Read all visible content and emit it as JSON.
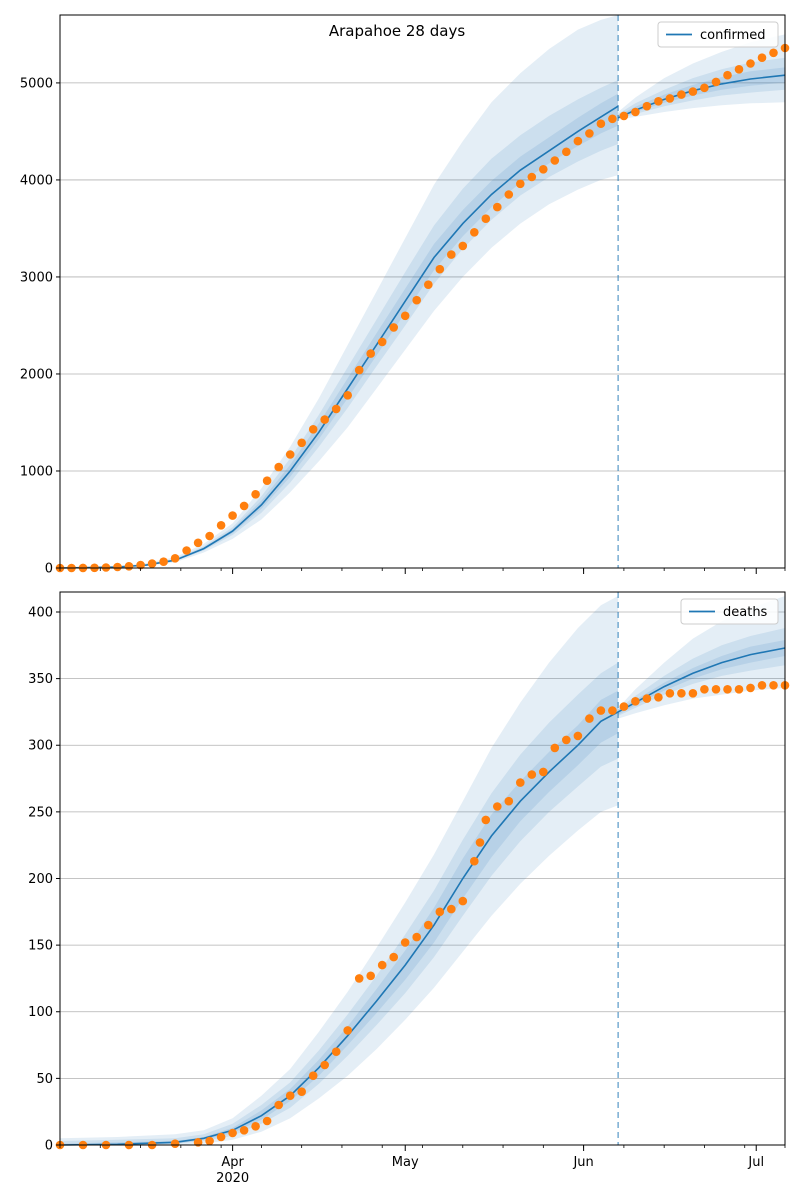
{
  "figure": {
    "title": "Arapahoe 28 days"
  },
  "colors": {
    "model_line": "#1f77b4",
    "observed_points": "#ff7f0e",
    "band": "#1f77b4",
    "grid": "#b0b0b0",
    "cutoff_line": "#1f77b4"
  },
  "chart_data": [
    {
      "type": "line",
      "name": "confirmed-panel",
      "x_start": "2020-03-02",
      "x_end": "2020-07-06",
      "forecast_cutoff": "2020-06-07",
      "ylim": [
        0,
        5700
      ],
      "yticks": [
        0,
        1000,
        2000,
        3000,
        4000,
        5000
      ],
      "xticks_major": [
        {
          "date": "2020-04-01",
          "label": "Apr",
          "sublabel": "2020"
        },
        {
          "date": "2020-05-01",
          "label": "May",
          "sublabel": ""
        },
        {
          "date": "2020-06-01",
          "label": "Jun",
          "sublabel": ""
        },
        {
          "date": "2020-07-01",
          "label": "Jul",
          "sublabel": ""
        }
      ],
      "grid": "horizontal",
      "legend": {
        "position": "top-right",
        "label": "confirmed"
      },
      "model": {
        "x": [
          "2020-03-02",
          "2020-03-12",
          "2020-03-17",
          "2020-03-22",
          "2020-03-27",
          "2020-04-01",
          "2020-04-06",
          "2020-04-11",
          "2020-04-16",
          "2020-04-21",
          "2020-04-26",
          "2020-05-01",
          "2020-05-06",
          "2020-05-11",
          "2020-05-16",
          "2020-05-21",
          "2020-05-26",
          "2020-05-31",
          "2020-06-04",
          "2020-06-07",
          "2020-06-07",
          "2020-06-10",
          "2020-06-15",
          "2020-06-20",
          "2020-06-25",
          "2020-06-30",
          "2020-07-06"
        ],
        "y": [
          0,
          10,
          30,
          80,
          200,
          380,
          650,
          1000,
          1400,
          1850,
          2300,
          2750,
          3200,
          3550,
          3850,
          4100,
          4300,
          4500,
          4650,
          4760,
          4640,
          4720,
          4830,
          4920,
          4990,
          5040,
          5080
        ],
        "bands": [
          {
            "lower": [
              0,
              5,
              20,
              60,
              160,
              300,
              500,
              780,
              1100,
              1450,
              1850,
              2250,
              2650,
              3000,
              3300,
              3550,
              3750,
              3900,
              4000,
              4050,
              4620,
              4650,
              4700,
              4740,
              4770,
              4790,
              4800
            ],
            "upper": [
              5,
              20,
              50,
              110,
              250,
              460,
              820,
              1250,
              1750,
              2300,
              2850,
              3400,
              3950,
              4400,
              4800,
              5100,
              5350,
              5550,
              5650,
              5700,
              4700,
              4850,
              5050,
              5200,
              5320,
              5420,
              5500
            ]
          },
          {
            "lower": [
              0,
              7,
              25,
              70,
              180,
              340,
              570,
              880,
              1250,
              1650,
              2080,
              2500,
              2930,
              3290,
              3590,
              3840,
              4030,
              4190,
              4300,
              4370,
              4630,
              4680,
              4760,
              4820,
              4870,
              4900,
              4930
            ],
            "upper": [
              3,
              15,
              40,
              95,
              225,
              420,
              740,
              1130,
              1580,
              2070,
              2560,
              3050,
              3530,
              3910,
              4220,
              4460,
              4660,
              4830,
              4950,
              5030,
              4680,
              4790,
              4930,
              5050,
              5140,
              5210,
              5260
            ]
          },
          {
            "lower": [
              0,
              8,
              27,
              75,
              190,
              360,
              610,
              940,
              1330,
              1750,
              2190,
              2630,
              3070,
              3420,
              3720,
              3970,
              4170,
              4350,
              4480,
              4560,
              4635,
              4700,
              4795,
              4870,
              4930,
              4970,
              5005
            ],
            "upper": [
              2,
              12,
              35,
              88,
              212,
              400,
              695,
              1065,
              1490,
              1955,
              2420,
              2880,
              3340,
              3690,
              3990,
              4240,
              4440,
              4640,
              4790,
              4890,
              4665,
              4755,
              4880,
              4980,
              5060,
              5120,
              5160
            ]
          }
        ]
      },
      "observed": {
        "x": [
          "2020-03-02",
          "2020-03-04",
          "2020-03-06",
          "2020-03-08",
          "2020-03-10",
          "2020-03-12",
          "2020-03-14",
          "2020-03-16",
          "2020-03-18",
          "2020-03-20",
          "2020-03-22",
          "2020-03-24",
          "2020-03-26",
          "2020-03-28",
          "2020-03-30",
          "2020-04-01",
          "2020-04-03",
          "2020-04-05",
          "2020-04-07",
          "2020-04-09",
          "2020-04-11",
          "2020-04-13",
          "2020-04-15",
          "2020-04-17",
          "2020-04-19",
          "2020-04-21",
          "2020-04-23",
          "2020-04-25",
          "2020-04-27",
          "2020-04-29",
          "2020-05-01",
          "2020-05-03",
          "2020-05-05",
          "2020-05-07",
          "2020-05-09",
          "2020-05-11",
          "2020-05-13",
          "2020-05-15",
          "2020-05-17",
          "2020-05-19",
          "2020-05-21",
          "2020-05-23",
          "2020-05-25",
          "2020-05-27",
          "2020-05-29",
          "2020-05-31",
          "2020-06-02",
          "2020-06-04",
          "2020-06-06",
          "2020-06-08",
          "2020-06-10",
          "2020-06-12",
          "2020-06-14",
          "2020-06-16",
          "2020-06-18",
          "2020-06-20",
          "2020-06-22",
          "2020-06-24",
          "2020-06-26",
          "2020-06-28",
          "2020-06-30",
          "2020-07-02",
          "2020-07-04",
          "2020-07-06"
        ],
        "y": [
          0,
          0,
          1,
          2,
          5,
          10,
          18,
          30,
          45,
          65,
          100,
          180,
          260,
          330,
          440,
          540,
          640,
          760,
          900,
          1040,
          1170,
          1290,
          1430,
          1530,
          1640,
          1780,
          2040,
          2210,
          2330,
          2480,
          2600,
          2760,
          2920,
          3080,
          3230,
          3320,
          3460,
          3600,
          3720,
          3850,
          3960,
          4030,
          4110,
          4200,
          4290,
          4400,
          4480,
          4580,
          4630,
          4660,
          4700,
          4760,
          4810,
          4840,
          4880,
          4910,
          4950,
          5010,
          5080,
          5140,
          5200,
          5260,
          5310,
          5360
        ]
      }
    },
    {
      "type": "line",
      "name": "deaths-panel",
      "x_start": "2020-03-02",
      "x_end": "2020-07-06",
      "forecast_cutoff": "2020-06-07",
      "ylim": [
        0,
        415
      ],
      "yticks": [
        0,
        50,
        100,
        150,
        200,
        250,
        300,
        350,
        400
      ],
      "xticks_major": [
        {
          "date": "2020-04-01",
          "label": "Apr",
          "sublabel": "2020"
        },
        {
          "date": "2020-05-01",
          "label": "May",
          "sublabel": ""
        },
        {
          "date": "2020-06-01",
          "label": "Jun",
          "sublabel": ""
        },
        {
          "date": "2020-07-01",
          "label": "Jul",
          "sublabel": ""
        }
      ],
      "grid": "horizontal",
      "legend": {
        "position": "top-right",
        "label": "deaths"
      },
      "model": {
        "x": [
          "2020-03-02",
          "2020-03-12",
          "2020-03-22",
          "2020-03-27",
          "2020-04-01",
          "2020-04-06",
          "2020-04-11",
          "2020-04-16",
          "2020-04-21",
          "2020-04-26",
          "2020-05-01",
          "2020-05-06",
          "2020-05-11",
          "2020-05-16",
          "2020-05-21",
          "2020-05-26",
          "2020-05-31",
          "2020-06-04",
          "2020-06-07",
          "2020-06-07",
          "2020-06-10",
          "2020-06-15",
          "2020-06-20",
          "2020-06-25",
          "2020-06-30",
          "2020-07-06"
        ],
        "y": [
          0,
          0.5,
          2,
          5,
          11,
          22,
          37,
          58,
          82,
          108,
          135,
          165,
          200,
          232,
          258,
          280,
          300,
          318,
          325,
          325,
          332,
          344,
          354,
          362,
          368,
          373
        ],
        "bands": [
          {
            "lower": [
              0,
              0,
              0,
              1,
              4,
              10,
              20,
              35,
              52,
              72,
              94,
              118,
              145,
              172,
              196,
              217,
              236,
              250,
              255,
              320,
              324,
              330,
              335,
              338,
              341,
              343
            ],
            "upper": [
              5,
              6,
              8,
              11,
              20,
              37,
              57,
              85,
              115,
              148,
              182,
              218,
              258,
              298,
              332,
              362,
              388,
              405,
              412,
              328,
              342,
              362,
              380,
              393,
              403,
              412
            ]
          },
          {
            "lower": [
              0,
              0,
              1,
              3,
              7,
              16,
              28,
              46,
              67,
              90,
              114,
              141,
              172,
              202,
              228,
              250,
              269,
              284,
              290,
              322,
              328,
              338,
              346,
              352,
              356,
              360
            ],
            "upper": [
              3,
              4,
              5,
              8,
              16,
              30,
              47,
              71,
              98,
              127,
              158,
              191,
              229,
              264,
              293,
              317,
              338,
              354,
              362,
              327,
              337,
              352,
              365,
              375,
              382,
              388
            ]
          },
          {
            "lower": [
              0,
              0,
              1,
              4,
              9,
              19,
              33,
              52,
              75,
              99,
              124,
              152,
              185,
              216,
              243,
              265,
              285,
              302,
              309,
              323,
              330,
              341,
              350,
              357,
              362,
              367
            ],
            "upper": [
              1,
              2,
              3,
              6,
              13,
              26,
              42,
              64,
              89,
              117,
              146,
              178,
              215,
              248,
              273,
              295,
              315,
              334,
              341,
              327,
              334,
              347,
              358,
              367,
              374,
              379
            ]
          }
        ]
      },
      "observed": {
        "x": [
          "2020-03-02",
          "2020-03-06",
          "2020-03-10",
          "2020-03-14",
          "2020-03-18",
          "2020-03-22",
          "2020-03-26",
          "2020-03-28",
          "2020-03-30",
          "2020-04-01",
          "2020-04-03",
          "2020-04-05",
          "2020-04-07",
          "2020-04-09",
          "2020-04-11",
          "2020-04-13",
          "2020-04-15",
          "2020-04-17",
          "2020-04-19",
          "2020-04-21",
          "2020-04-23",
          "2020-04-25",
          "2020-04-27",
          "2020-04-29",
          "2020-05-01",
          "2020-05-03",
          "2020-05-05",
          "2020-05-07",
          "2020-05-09",
          "2020-05-11",
          "2020-05-13",
          "2020-05-14",
          "2020-05-15",
          "2020-05-17",
          "2020-05-19",
          "2020-05-21",
          "2020-05-23",
          "2020-05-25",
          "2020-05-27",
          "2020-05-29",
          "2020-05-31",
          "2020-06-02",
          "2020-06-04",
          "2020-06-06",
          "2020-06-08",
          "2020-06-10",
          "2020-06-12",
          "2020-06-14",
          "2020-06-16",
          "2020-06-18",
          "2020-06-20",
          "2020-06-22",
          "2020-06-24",
          "2020-06-26",
          "2020-06-28",
          "2020-06-30",
          "2020-07-02",
          "2020-07-04",
          "2020-07-06"
        ],
        "y": [
          0,
          0,
          0,
          0,
          0,
          1,
          2,
          3,
          6,
          9,
          11,
          14,
          18,
          30,
          37,
          40,
          52,
          60,
          70,
          86,
          125,
          127,
          135,
          141,
          152,
          156,
          165,
          175,
          177,
          183,
          213,
          227,
          244,
          254,
          258,
          272,
          278,
          280,
          298,
          304,
          307,
          320,
          326,
          326,
          329,
          333,
          335,
          336,
          339,
          339,
          339,
          342,
          342,
          342,
          342,
          343,
          345,
          345,
          345
        ]
      }
    }
  ]
}
